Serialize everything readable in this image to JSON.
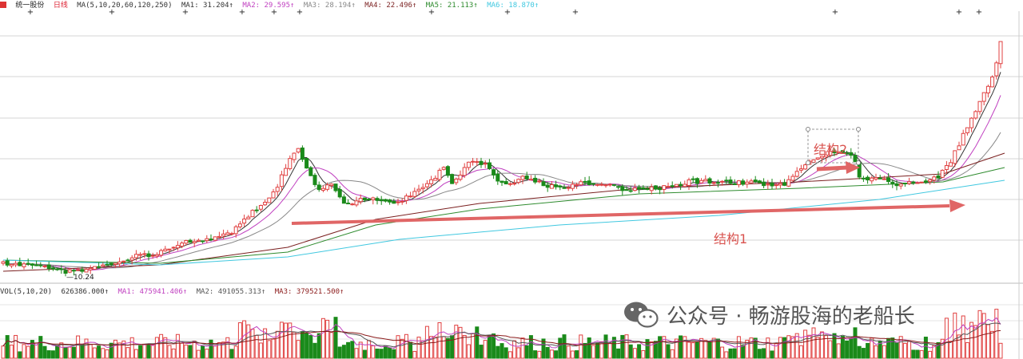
{
  "price_header": {
    "stock_name": "统一股份",
    "period": "日线",
    "ma_params": "MA(5,10,20,60,120,250)",
    "items": [
      {
        "label": "MA1: 31.204↑",
        "color": "#333333"
      },
      {
        "label": "MA2: 29.595↑",
        "color": "#c040c0"
      },
      {
        "label": "MA3: 28.194↑",
        "color": "#888888"
      },
      {
        "label": "MA4: 22.496↑",
        "color": "#7a1f1f"
      },
      {
        "label": "MA5: 21.113↑",
        "color": "#2e8b2e"
      },
      {
        "label": "MA6: 18.870↑",
        "color": "#40c8e0"
      }
    ]
  },
  "vol_header": {
    "params": "VOL(5,10,20)",
    "value": "626386.000↑",
    "items": [
      {
        "label": "MA1: 475941.406↑",
        "color": "#c040c0"
      },
      {
        "label": "MA2: 491055.313↑",
        "color": "#555555"
      },
      {
        "label": "MA3: 379521.500↑",
        "color": "#8b1a1a"
      }
    ]
  },
  "chart_data": {
    "type": "candlestick",
    "low_marker": "10.24",
    "annotations": [
      "结构1",
      "结构2"
    ],
    "colors": {
      "up": "#e04040",
      "down": "#1a8a1a",
      "grid": "#d4d4d4",
      "arrow": "#e06666"
    }
  },
  "watermark": {
    "text": "公众号 · 畅游股海的老船长"
  }
}
